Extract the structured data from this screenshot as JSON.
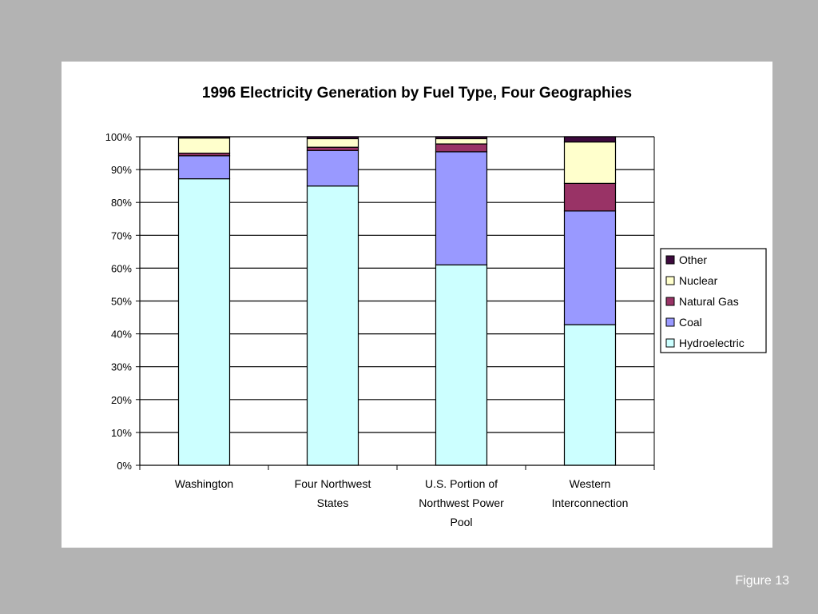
{
  "footer": {
    "label": "Figure 13"
  },
  "colors": {
    "Other": "#3d0a3d",
    "Nuclear": "#ffffcc",
    "Natural Gas": "#993366",
    "Coal": "#9999ff",
    "Hydroelectric": "#ccffff"
  },
  "chart_data": {
    "type": "bar",
    "stacked": true,
    "title": "1996 Electricity Generation by Fuel Type, Four Geographies",
    "xlabel": "",
    "ylabel": "",
    "ylim": [
      0,
      100
    ],
    "y_ticks": [
      "0%",
      "10%",
      "20%",
      "30%",
      "40%",
      "50%",
      "60%",
      "70%",
      "80%",
      "90%",
      "100%"
    ],
    "grid": true,
    "legend_position": "right",
    "categories": [
      [
        "Washington"
      ],
      [
        "Four Northwest",
        "States"
      ],
      [
        "U.S. Portion of",
        "Northwest Power",
        "Pool"
      ],
      [
        "Western",
        "Interconnection"
      ]
    ],
    "series": [
      {
        "name": "Hydroelectric",
        "values": [
          87.2,
          85,
          61,
          42.8
        ]
      },
      {
        "name": "Coal",
        "values": [
          7,
          10.8,
          34.4,
          34.6
        ]
      },
      {
        "name": "Natural Gas",
        "values": [
          0.8,
          1,
          2.4,
          8.4
        ]
      },
      {
        "name": "Nuclear",
        "values": [
          4.6,
          2.6,
          1.6,
          12.6
        ]
      },
      {
        "name": "Other",
        "values": [
          0.4,
          0.6,
          0.6,
          1.6
        ]
      }
    ]
  }
}
